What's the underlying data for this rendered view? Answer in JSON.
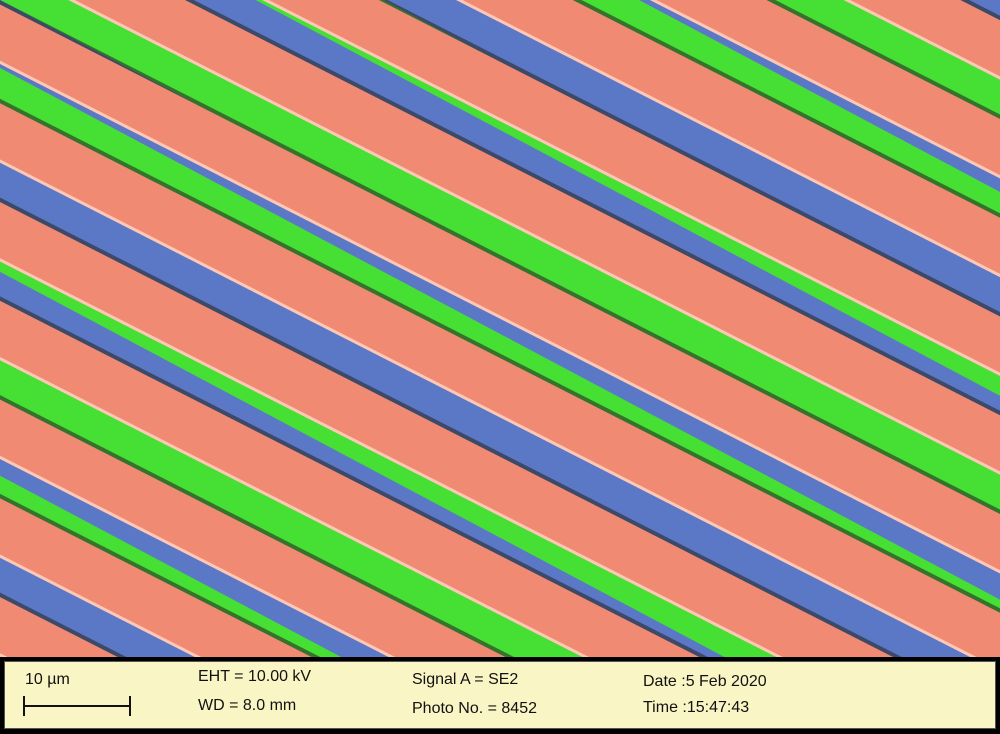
{
  "image": {
    "subject": "false-colored SEM micrograph",
    "colors": {
      "stripe": "#f08a72",
      "block_a": "#45e033",
      "block_b": "#5b78c6",
      "panel": "#f9f5c4"
    }
  },
  "info_bar": {
    "scale_label": "10 µm",
    "eht": "EHT = 10.00 kV",
    "wd": "WD =  8.0 mm",
    "signal": "Signal A = SE2",
    "photo": "Photo No. = 8452",
    "date": "Date :5 Feb 2020",
    "time": "Time :15:47:43"
  }
}
